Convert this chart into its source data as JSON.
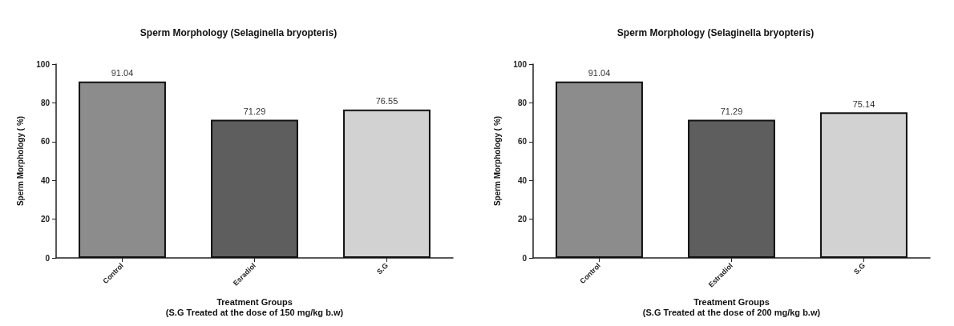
{
  "chart_data": [
    {
      "type": "bar",
      "title": "Sperm Morphology (Selaginella bryopteris)",
      "xlabel": "Treatment Groups\n(S.G Treated at the dose of 150 mg/kg b.w)",
      "ylabel": "Sperm Morphology ( %)",
      "categories": [
        "Control",
        "Esradiol",
        "S.G"
      ],
      "values": [
        91.04,
        71.29,
        76.55
      ],
      "colors": [
        "#8c8c8c",
        "#5e5e5e",
        "#d2d2d2"
      ],
      "ylim": [
        0,
        100
      ],
      "yticks": [
        0,
        20,
        40,
        60,
        80,
        100
      ],
      "data_labels": true
    },
    {
      "type": "bar",
      "title": "Sperm Morphology (Selaginella bryopteris)",
      "xlabel": "Treatment Groups\n(S.G Treated at the dose of 200 mg/kg b.w)",
      "ylabel": "Sperm Morphology ( %)",
      "categories": [
        "Control",
        "Estradiol",
        "S.G"
      ],
      "values": [
        91.04,
        71.29,
        75.14
      ],
      "colors": [
        "#8c8c8c",
        "#5e5e5e",
        "#d2d2d2"
      ],
      "ylim": [
        0,
        100
      ],
      "yticks": [
        0,
        20,
        40,
        60,
        80,
        100
      ],
      "data_labels": true
    }
  ]
}
